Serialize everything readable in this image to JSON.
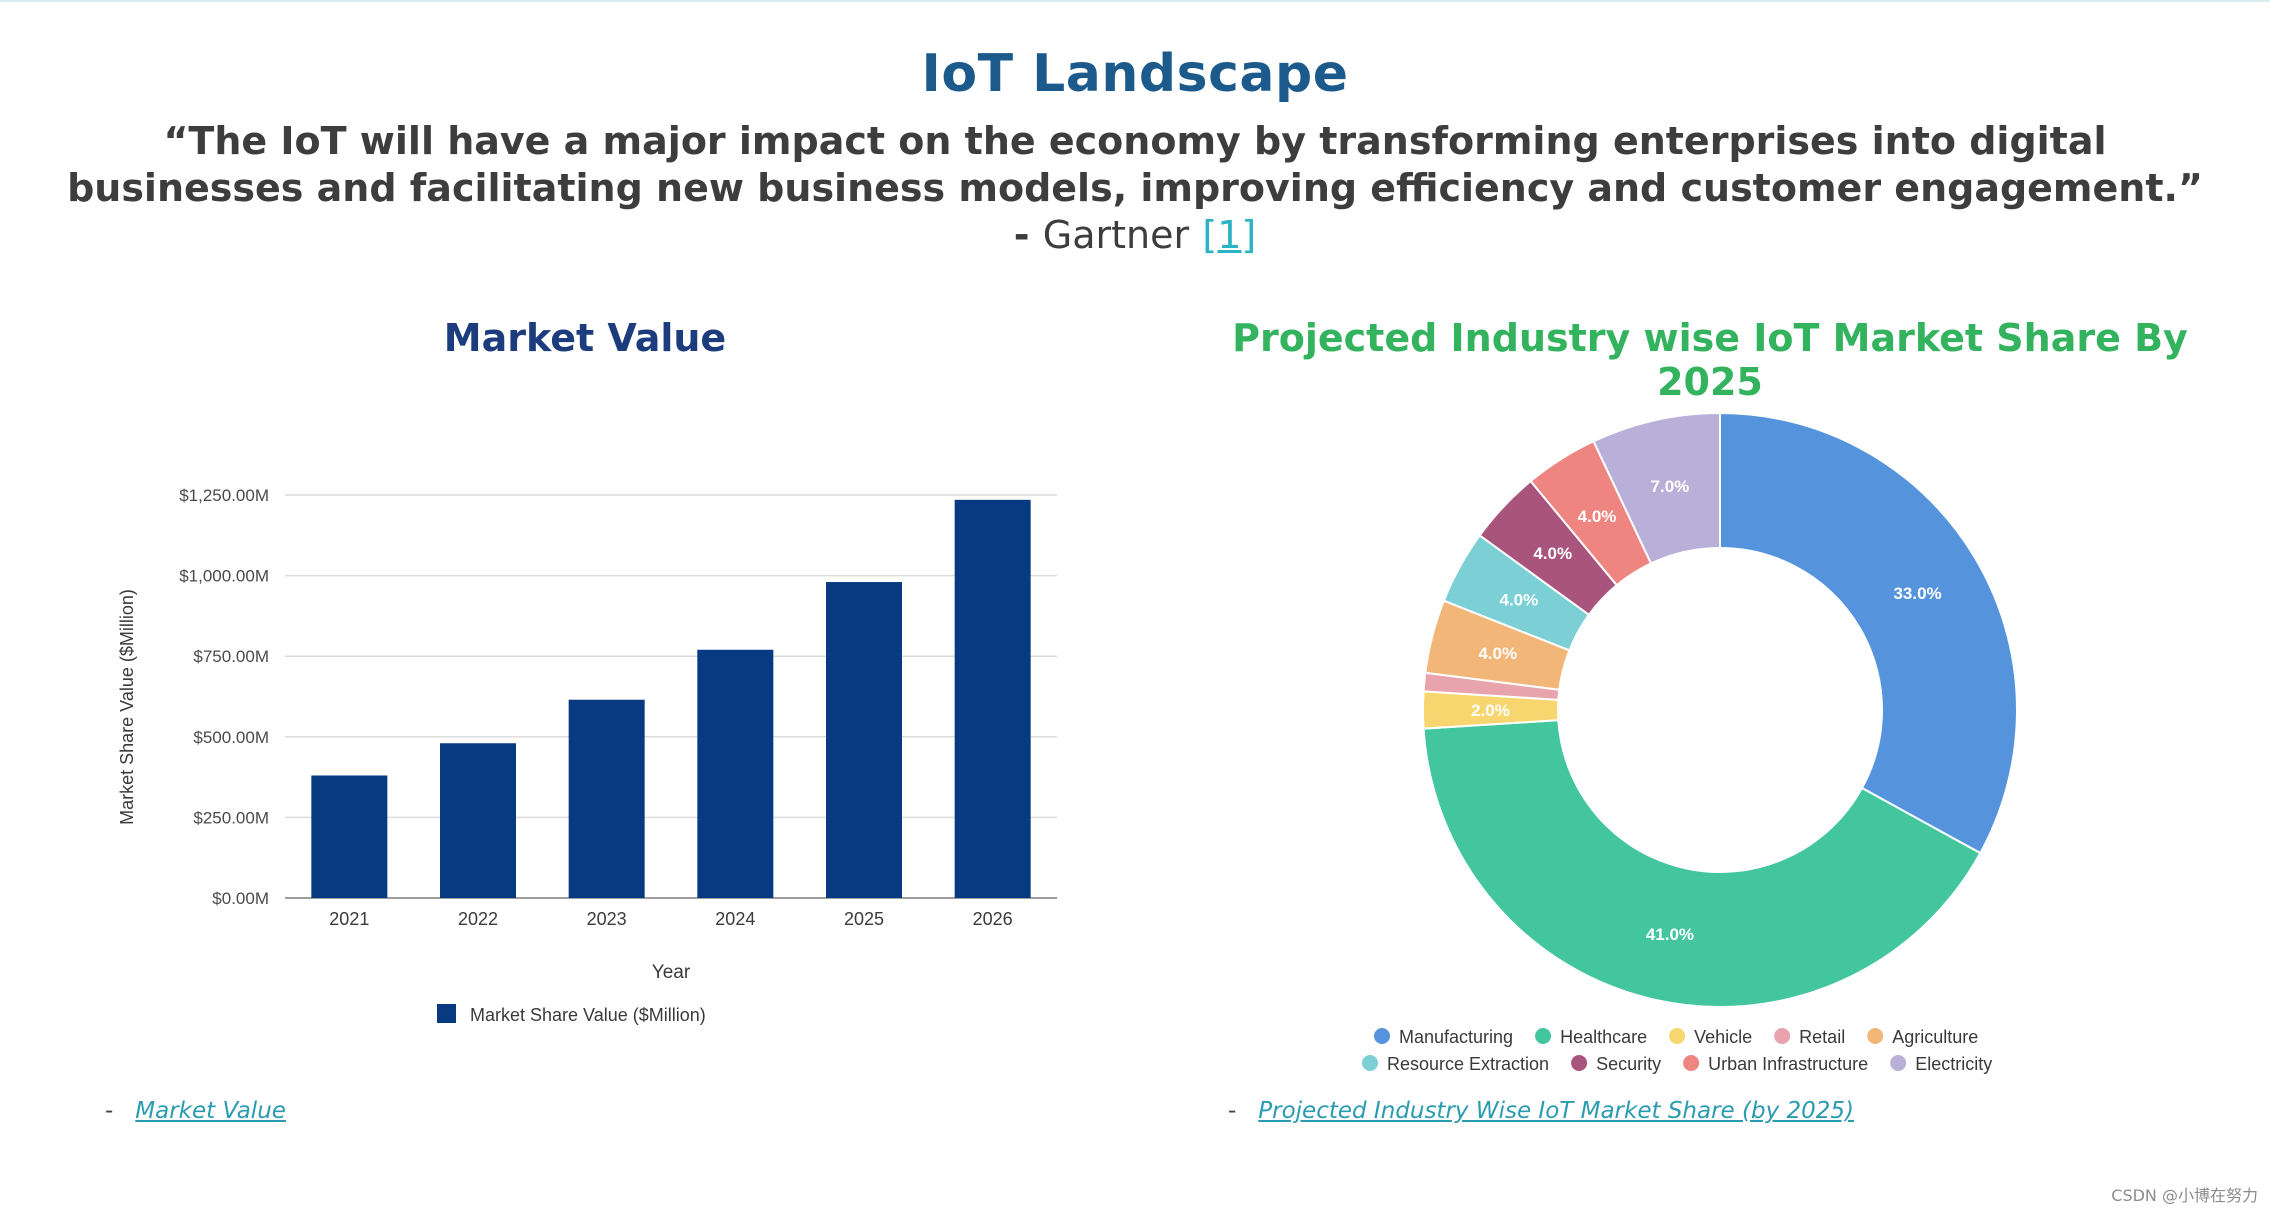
{
  "header": {
    "title": "IoT Landscape",
    "quote": "“The IoT will have a major impact on the economy by transforming enterprises into digital businesses and facilitating new business models, improving efficiency and customer engagement.”",
    "dash": " - ",
    "attribution": "Gartner",
    "reference": "[1]"
  },
  "chart_data": [
    {
      "type": "bar",
      "title": "Market Value",
      "categories": [
        "2021",
        "2022",
        "2023",
        "2024",
        "2025",
        "2026"
      ],
      "values": [
        380,
        480,
        615,
        770,
        980,
        1235
      ],
      "ytick_values": [
        0,
        250,
        500,
        750,
        1000,
        1250
      ],
      "ytick_labels": [
        "$0.00M",
        "$250.00M",
        "$500.00M",
        "$750.00M",
        "$1,000.00M",
        "$1,250.00M"
      ],
      "ylim": [
        0,
        1250
      ],
      "xlabel": "Year",
      "ylabel": "Market Share Value ($Million)",
      "legend": "Market Share Value ($Million)",
      "color": "#073a80",
      "grid": true
    },
    {
      "type": "pie",
      "donut": true,
      "title": "Projected Industry wise IoT Market Share By 2025",
      "slices": [
        {
          "label": "Manufacturing",
          "value": 33.0,
          "color": "#5594dd",
          "text": "33.0%"
        },
        {
          "label": "Healthcare",
          "value": 41.0,
          "color": "#43c69e",
          "text": "41.0%"
        },
        {
          "label": "Vehicle",
          "value": 2.0,
          "color": "#f7d66f",
          "text": "2.0%"
        },
        {
          "label": "Retail",
          "value": 1.0,
          "color": "#e8a3ac",
          "text": ""
        },
        {
          "label": "Agriculture",
          "value": 4.0,
          "color": "#f2b679",
          "text": "4.0%"
        },
        {
          "label": "Resource Extraction",
          "value": 4.0,
          "color": "#7ccfd4",
          "text": "4.0%"
        },
        {
          "label": "Security",
          "value": 4.0,
          "color": "#a9547c",
          "text": "4.0%"
        },
        {
          "label": "Urban Infrastructure",
          "value": 4.0,
          "color": "#ee8580",
          "text": "4.0%"
        },
        {
          "label": "Electricity",
          "value": 7.0,
          "color": "#b9b0da",
          "text": "7.0%"
        }
      ]
    }
  ],
  "sources": {
    "left_dash": "-",
    "left_link": "Market Value",
    "right_dash": "-",
    "right_link": "Projected Industry Wise IoT Market Share (by 2025)"
  },
  "watermark": "CSDN @小博在努力"
}
